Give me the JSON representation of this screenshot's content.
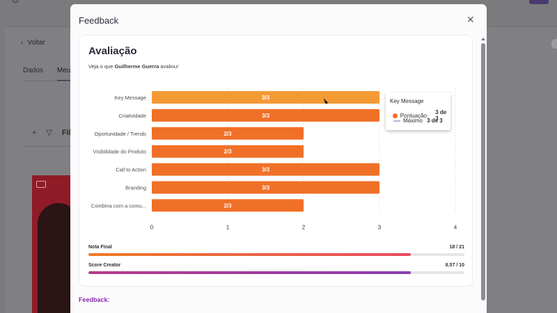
{
  "background": {
    "back_label": "Voltar",
    "tabs": [
      {
        "label": "Dados"
      },
      {
        "label": "Meus"
      }
    ],
    "filter_label": "Filt"
  },
  "modal": {
    "title": "Feedback",
    "close_icon": "close-icon",
    "panel": {
      "title": "Avaliação",
      "subtitle_prefix": "Veja o que ",
      "subtitle_name": "Guilherme Guerra",
      "subtitle_suffix": " avaliou!"
    },
    "tooltip": {
      "title": "Key Message",
      "row1_label": "Pontuação:",
      "row1_value": "3 de 3",
      "row2_label": "Máximo",
      "row2_value": "3 de 3"
    },
    "scores": [
      {
        "label": "Nota Final",
        "value": "18 / 21",
        "fraction": 0.857,
        "color": "#f07a24"
      },
      {
        "label": "Score Creator",
        "value": "8.57 / 10",
        "fraction": 0.857,
        "color": "#a03c9c"
      }
    ],
    "feedback_label": "Feedback:"
  },
  "chart_data": {
    "type": "bar",
    "orientation": "horizontal",
    "categories": [
      "Key Message",
      "Criatividade",
      "Oportunidade / Trends",
      "Visibilidade do Produto",
      "Call to Action",
      "Branding",
      "Combina com a comu..."
    ],
    "series": [
      {
        "values": [
          3,
          3,
          2,
          2,
          3,
          3,
          2
        ],
        "max": [
          3,
          3,
          3,
          3,
          3,
          3,
          3
        ]
      }
    ],
    "data_labels": [
      "3/3",
      "3/3",
      "2/3",
      "2/3",
      "3/3",
      "3/3",
      "2/3"
    ],
    "x_ticks": [
      "0",
      "1",
      "2",
      "3",
      "4"
    ],
    "xlim": [
      0,
      4
    ],
    "bar_color": "#f07027",
    "highlight_color": "#f49a35"
  }
}
